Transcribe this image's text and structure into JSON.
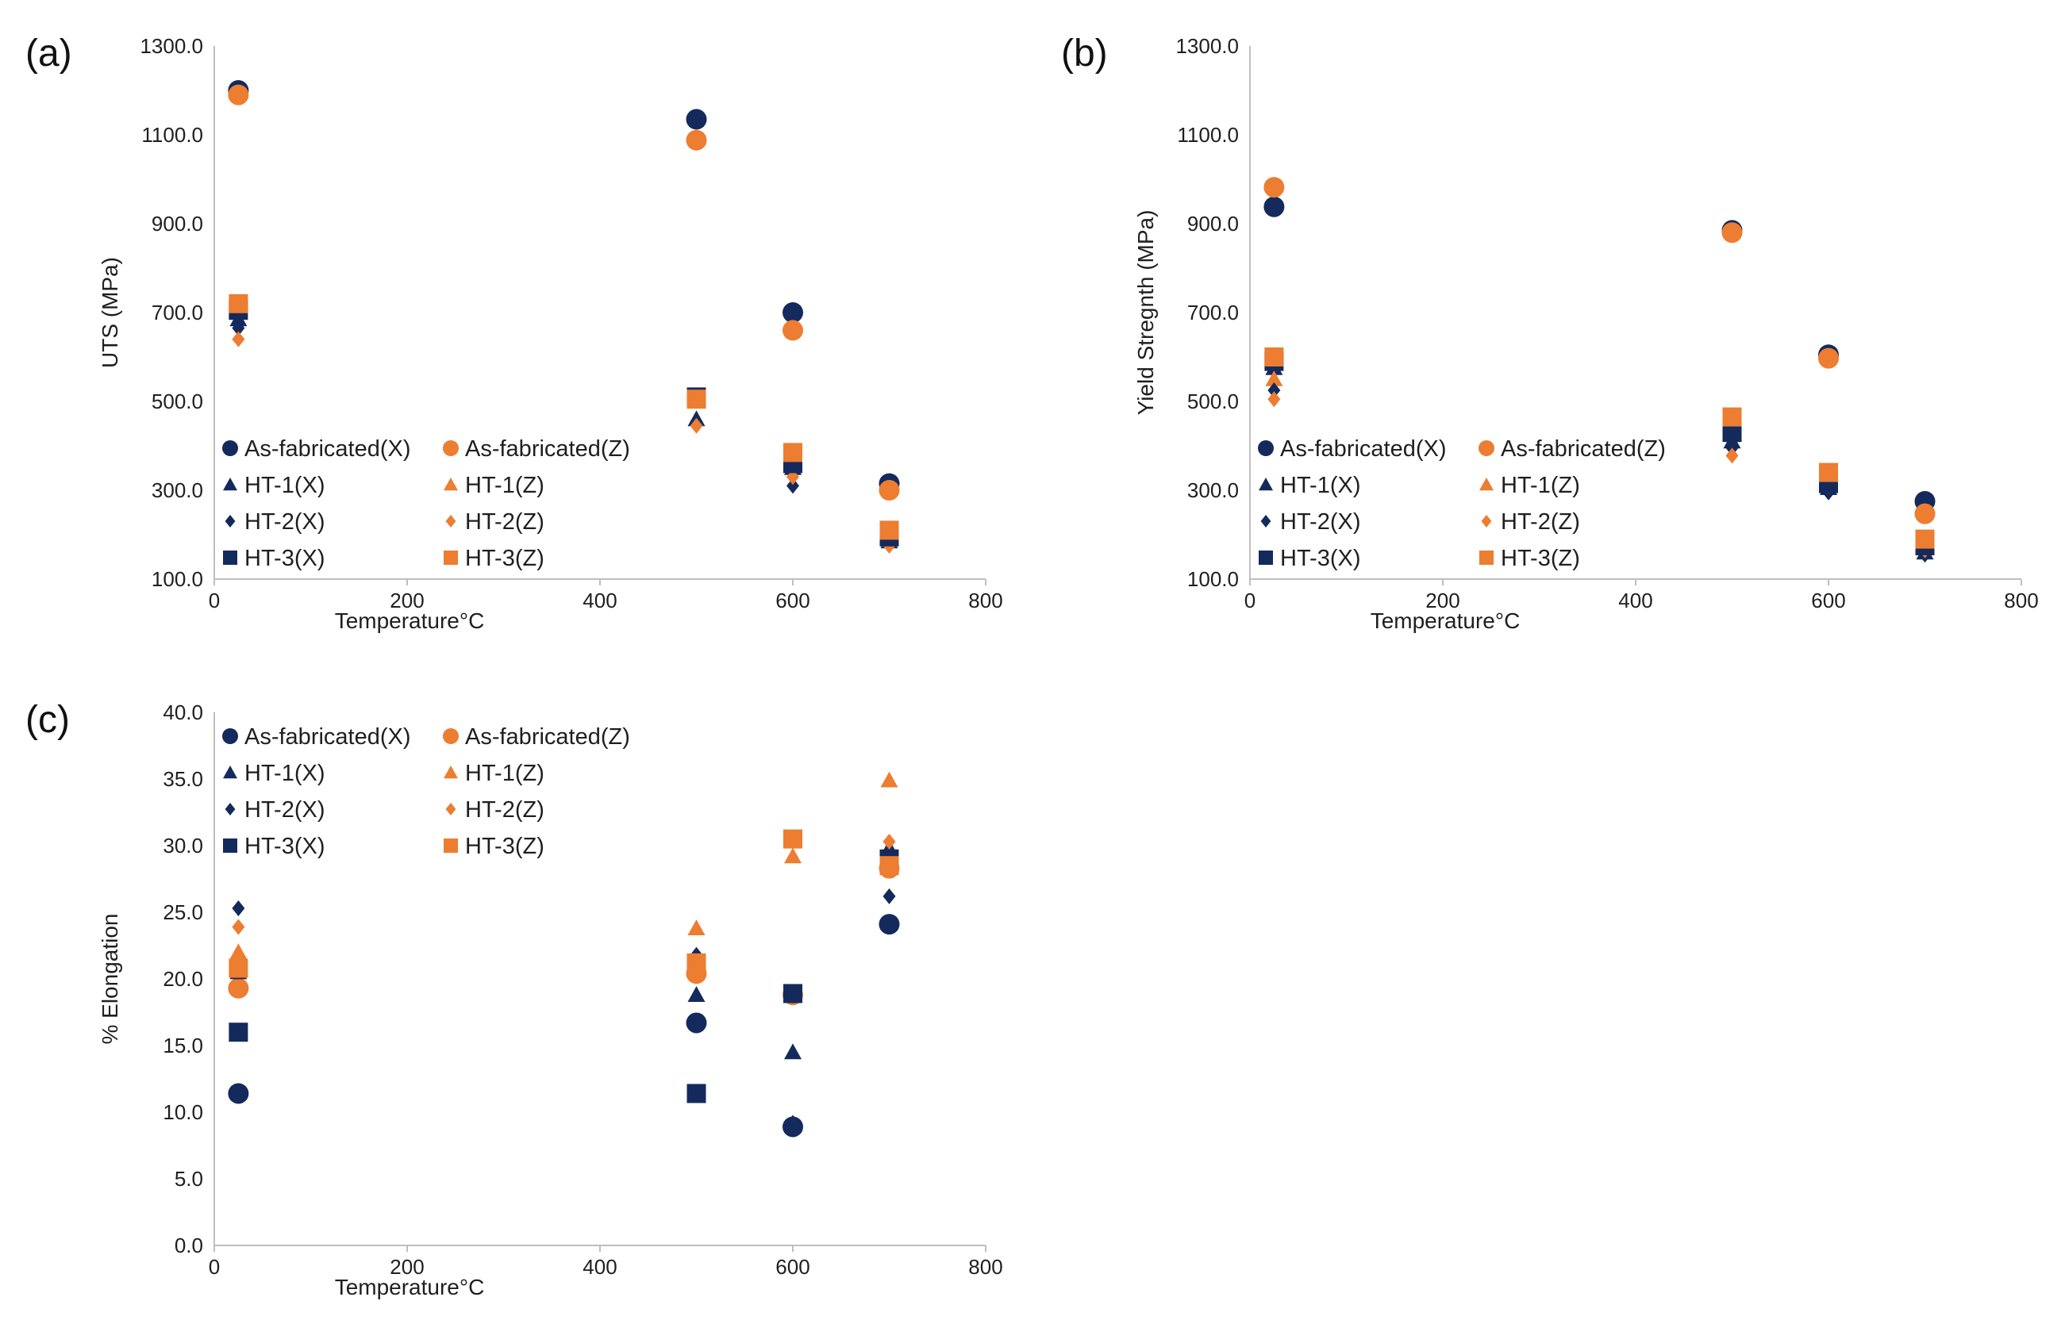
{
  "colors": {
    "navy": "#142a5c",
    "orange": "#ec7d31",
    "axis": "#bfbfbf"
  },
  "series_styles": [
    {
      "key": "As-fabricated(X)",
      "shape": "circle",
      "color": "#142a5c"
    },
    {
      "key": "As-fabricated(Z)",
      "shape": "circle",
      "color": "#ec7d31"
    },
    {
      "key": "HT-1(X)",
      "shape": "triangle",
      "color": "#142a5c"
    },
    {
      "key": "HT-1(Z)",
      "shape": "triangle",
      "color": "#ec7d31"
    },
    {
      "key": "HT-2(X)",
      "shape": "diamond",
      "color": "#142a5c"
    },
    {
      "key": "HT-2(Z)",
      "shape": "diamond",
      "color": "#ec7d31"
    },
    {
      "key": "HT-3(X)",
      "shape": "square",
      "color": "#142a5c"
    },
    {
      "key": "HT-3(Z)",
      "shape": "square",
      "color": "#ec7d31"
    }
  ],
  "chart_data": [
    {
      "id": "a",
      "panel_label": "(a)",
      "type": "scatter",
      "xlabel": "Temperature°C",
      "ylabel": "UTS (MPa)",
      "xlim": [
        0,
        800
      ],
      "ylim": [
        100,
        1300
      ],
      "xticks": [
        0,
        200,
        400,
        600,
        800
      ],
      "xtick_labels": [
        "0",
        "200",
        "400",
        "600",
        "800"
      ],
      "yticks": [
        100,
        300,
        500,
        700,
        900,
        1100,
        1300
      ],
      "ytick_labels": [
        "100.0",
        "300.0",
        "500.0",
        "700.0",
        "900.0",
        "1100.0",
        "1300.0"
      ],
      "legend_position": "lower-left",
      "series": [
        {
          "name": "As-fabricated(X)",
          "x": [
            25,
            500,
            600,
            700
          ],
          "y": [
            1200,
            1135,
            700,
            315
          ]
        },
        {
          "name": "As-fabricated(Z)",
          "x": [
            25,
            500,
            600,
            700
          ],
          "y": [
            1190,
            1088,
            660,
            300
          ]
        },
        {
          "name": "HT-1(X)",
          "x": [
            25,
            500,
            600,
            700
          ],
          "y": [
            685,
            460,
            350,
            185
          ]
        },
        {
          "name": "HT-1(Z)",
          "x": [
            25,
            500,
            600,
            700
          ],
          "y": [
            700,
            500,
            370,
            195
          ]
        },
        {
          "name": "HT-2(X)",
          "x": [
            25,
            500,
            600,
            700
          ],
          "y": [
            665,
            455,
            310,
            180
          ]
        },
        {
          "name": "HT-2(Z)",
          "x": [
            25,
            500,
            600,
            700
          ],
          "y": [
            640,
            445,
            330,
            175
          ]
        },
        {
          "name": "HT-3(X)",
          "x": [
            25,
            500,
            600,
            700
          ],
          "y": [
            705,
            510,
            360,
            195
          ]
        },
        {
          "name": "HT-3(Z)",
          "x": [
            25,
            500,
            600,
            700
          ],
          "y": [
            720,
            505,
            385,
            210
          ]
        }
      ]
    },
    {
      "id": "b",
      "panel_label": "(b)",
      "type": "scatter",
      "xlabel": "Temperature°C",
      "ylabel": "Yield Stregnth (MPa)",
      "xlim": [
        0,
        800
      ],
      "ylim": [
        100,
        1300
      ],
      "xticks": [
        0,
        200,
        400,
        600,
        800
      ],
      "xtick_labels": [
        "0",
        "200",
        "400",
        "600",
        "800"
      ],
      "yticks": [
        100,
        300,
        500,
        700,
        900,
        1100,
        1300
      ],
      "ytick_labels": [
        "100.0",
        "300.0",
        "500.0",
        "700.0",
        "900.0",
        "1100.0",
        "1300.0"
      ],
      "legend_position": "lower-left",
      "series": [
        {
          "name": "As-fabricated(X)",
          "x": [
            25,
            500,
            600,
            700
          ],
          "y": [
            938,
            885,
            605,
            275
          ]
        },
        {
          "name": "As-fabricated(Z)",
          "x": [
            25,
            500,
            600,
            700
          ],
          "y": [
            982,
            880,
            597,
            247
          ]
        },
        {
          "name": "HT-1(X)",
          "x": [
            25,
            500,
            600,
            700
          ],
          "y": [
            575,
            410,
            305,
            160
          ]
        },
        {
          "name": "HT-1(Z)",
          "x": [
            25,
            500,
            600,
            700
          ],
          "y": [
            550,
            440,
            320,
            170
          ]
        },
        {
          "name": "HT-2(X)",
          "x": [
            25,
            500,
            600,
            700
          ],
          "y": [
            525,
            395,
            295,
            155
          ]
        },
        {
          "name": "HT-2(Z)",
          "x": [
            25,
            500,
            600,
            700
          ],
          "y": [
            505,
            378,
            310,
            165
          ]
        },
        {
          "name": "HT-3(X)",
          "x": [
            25,
            500,
            600,
            700
          ],
          "y": [
            590,
            430,
            315,
            175
          ]
        },
        {
          "name": "HT-3(Z)",
          "x": [
            25,
            500,
            600,
            700
          ],
          "y": [
            600,
            465,
            340,
            190
          ]
        }
      ]
    },
    {
      "id": "c",
      "panel_label": "(c)",
      "type": "scatter",
      "xlabel": "Temperature°C",
      "ylabel": "% Elongation",
      "xlim": [
        0,
        800
      ],
      "ylim": [
        0,
        40
      ],
      "xticks": [
        0,
        200,
        400,
        600,
        800
      ],
      "xtick_labels": [
        "0",
        "200",
        "400",
        "600",
        "800"
      ],
      "yticks": [
        0,
        5,
        10,
        15,
        20,
        25,
        30,
        35,
        40
      ],
      "ytick_labels": [
        "0.0",
        "5.0",
        "10.0",
        "15.0",
        "20.0",
        "25.0",
        "30.0",
        "35.0",
        "40.0"
      ],
      "legend_position": "upper-left",
      "series": [
        {
          "name": "As-fabricated(X)",
          "x": [
            25,
            500,
            600,
            700
          ],
          "y": [
            11.4,
            16.7,
            8.9,
            24.1
          ]
        },
        {
          "name": "As-fabricated(Z)",
          "x": [
            25,
            500,
            600,
            700
          ],
          "y": [
            19.3,
            20.4,
            18.8,
            28.3
          ]
        },
        {
          "name": "HT-1(X)",
          "x": [
            25,
            500,
            600,
            700
          ],
          "y": [
            20.5,
            18.8,
            14.5,
            29.8
          ]
        },
        {
          "name": "HT-1(Z)",
          "x": [
            25,
            500,
            600,
            700
          ],
          "y": [
            22.0,
            23.8,
            29.2,
            34.9
          ]
        },
        {
          "name": "HT-2(X)",
          "x": [
            25,
            500,
            600,
            700
          ],
          "y": [
            25.3,
            21.8,
            9.2,
            26.2
          ]
        },
        {
          "name": "HT-2(Z)",
          "x": [
            25,
            500,
            600,
            700
          ],
          "y": [
            23.9,
            20.5,
            18.6,
            30.3
          ]
        },
        {
          "name": "HT-3(X)",
          "x": [
            25,
            500,
            600,
            700
          ],
          "y": [
            16.0,
            11.4,
            18.9,
            29.0
          ]
        },
        {
          "name": "HT-3(Z)",
          "x": [
            25,
            500,
            600,
            700
          ],
          "y": [
            20.8,
            21.2,
            30.5,
            28.5
          ]
        }
      ]
    }
  ]
}
